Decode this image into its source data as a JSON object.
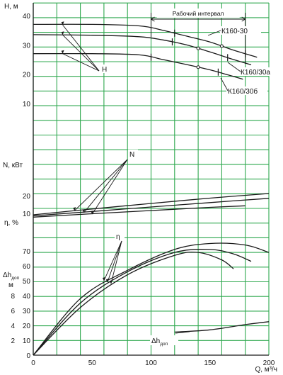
{
  "chart_data": {
    "type": "line",
    "x_axis": {
      "label": "Q, м³/ч",
      "range": [
        0,
        200
      ],
      "ticks": [
        0,
        50,
        100,
        150,
        200
      ]
    },
    "grid": true,
    "colors": {
      "grid": "#2fa84f",
      "curve": "#1a1a1a",
      "background": "#ffffff"
    },
    "panels": [
      {
        "id": "head",
        "ylabel": "H, м",
        "ylim": [
          0,
          40
        ],
        "yticks": [
          10,
          20,
          30,
          40
        ],
        "callout": "H",
        "series": [
          {
            "name": "К160-30",
            "x": [
              0,
              50,
              90,
              110,
              130,
              150,
              170,
              190
            ],
            "y": [
              37,
              37,
              36.5,
              35,
              33,
              31,
              28.2,
              25.8
            ]
          },
          {
            "name": "К160/30а",
            "x": [
              0,
              50,
              90,
              110,
              130,
              150,
              170,
              185
            ],
            "y": [
              33.5,
              33.3,
              32.8,
              31.7,
              30,
              27.6,
              25,
              23.2
            ]
          },
          {
            "name": "К160/30б",
            "x": [
              0,
              50,
              90,
              110,
              130,
              150,
              165,
              178
            ],
            "y": [
              27,
              27,
              26.6,
              25,
              23.3,
              21.5,
              19.8,
              18.3
            ]
          }
        ],
        "working_interval": {
          "label": "Рабочий интервал",
          "from": 100,
          "to": 180
        }
      },
      {
        "id": "power",
        "ylabel": "N, кВт",
        "ylim": [
          6,
          22
        ],
        "yticks": [
          10,
          20
        ],
        "callout": "N",
        "series": [
          {
            "name": "К160-30",
            "x": [
              0,
              50,
              100,
              150,
              200
            ],
            "y": [
              9.2,
              12.5,
              15.6,
              18.6,
              21.2
            ]
          },
          {
            "name": "К160/30а",
            "x": [
              0,
              50,
              100,
              150,
              200
            ],
            "y": [
              8.6,
              11.1,
              13.6,
              16.1,
              18.5
            ]
          },
          {
            "name": "К160/30б",
            "x": [
              0,
              50,
              100,
              150,
              180
            ],
            "y": [
              7.9,
              9.8,
              11.6,
              13.4,
              14.3
            ]
          }
        ]
      },
      {
        "id": "efficiency",
        "ylabel": "η, %",
        "ylim": [
          0,
          80
        ],
        "yticks": [
          10,
          20,
          30,
          40,
          50,
          60,
          70
        ],
        "callout": "η",
        "series": [
          {
            "name": "К160-30",
            "x": [
              0,
              40,
              80,
              120,
              150,
              180,
              200
            ],
            "y": [
              0,
              38,
              57,
              71,
              75,
              74,
              69
            ]
          },
          {
            "name": "К160/30а",
            "x": [
              0,
              40,
              80,
              120,
              150,
              170,
              185
            ],
            "y": [
              0,
              35,
              56,
              69,
              71,
              68,
              63
            ]
          },
          {
            "name": "К160/30б",
            "x": [
              0,
              40,
              80,
              120,
              140,
              160,
              170
            ],
            "y": [
              0,
              32,
              54,
              67,
              69,
              64,
              58
            ]
          }
        ]
      },
      {
        "id": "npsh",
        "ylabel": "Δhдоп, м",
        "ylim": [
          0,
          10
        ],
        "yticks": [
          0,
          2,
          4,
          6,
          8
        ],
        "callout": "Δhдоп",
        "series": [
          {
            "name": "Δhдоп",
            "x": [
              120,
              150,
              180,
              200
            ],
            "y": [
              3.1,
              3.4,
              4.1,
              4.5
            ]
          }
        ]
      }
    ],
    "curve_labels": [
      "К160-30",
      "К160/30а",
      "К160/30б"
    ]
  }
}
